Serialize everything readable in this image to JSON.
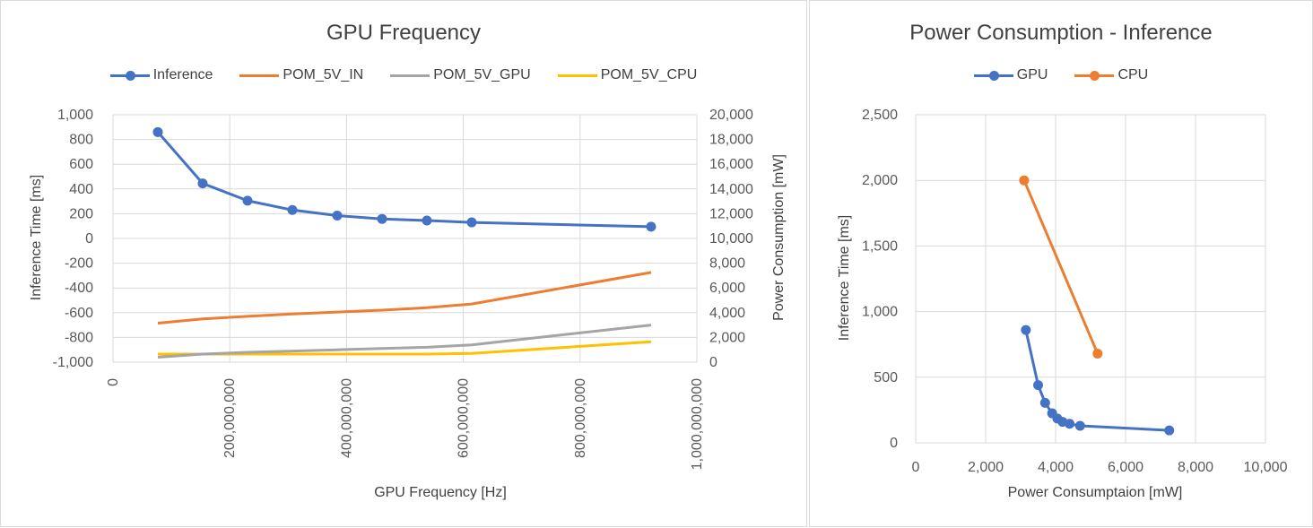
{
  "chart_data": [
    {
      "type": "line",
      "title": "GPU Frequency",
      "xlabel": "GPU Frequency [Hz]",
      "ylabel": "Inference Time [ms]",
      "y2label": "Power Consumption [mW]",
      "xlim": [
        0,
        1000000000
      ],
      "xticks": [
        0,
        200000000,
        400000000,
        600000000,
        800000000,
        1000000000
      ],
      "xtick_labels": [
        "0",
        "200,000,000",
        "400,000,000",
        "600,000,000",
        "800,000,000",
        "1,000,000,000"
      ],
      "ylim": [
        -1000,
        1000
      ],
      "yticks": [
        -1000,
        -800,
        -600,
        -400,
        -200,
        0,
        200,
        400,
        600,
        800,
        1000
      ],
      "ytick_labels": [
        "-1,000",
        "-800",
        "-600",
        "-400",
        "-200",
        "0",
        "200",
        "400",
        "600",
        "800",
        "1,000"
      ],
      "y2lim": [
        0,
        20000
      ],
      "y2ticks": [
        0,
        2000,
        4000,
        6000,
        8000,
        10000,
        12000,
        14000,
        16000,
        18000,
        20000
      ],
      "y2tick_labels": [
        "0",
        "2,000",
        "4,000",
        "6,000",
        "8,000",
        "10,000",
        "12,000",
        "14,000",
        "16,000",
        "18,000",
        "20,000"
      ],
      "grid": true,
      "legend_position": "top",
      "x": [
        76800000,
        153600000,
        230400000,
        307200000,
        384000000,
        460800000,
        537600000,
        614400000,
        921600000
      ],
      "series": [
        {
          "name": "Inference",
          "axis": "left",
          "color": "#4472C4",
          "markers": true,
          "values": [
            860,
            445,
            305,
            230,
            185,
            158,
            145,
            130,
            95
          ]
        },
        {
          "name": "POM_5V_IN",
          "axis": "right",
          "color": "#ED7D31",
          "markers": false,
          "values": [
            3150,
            3500,
            3700,
            3900,
            4050,
            4200,
            4400,
            4700,
            7250
          ]
        },
        {
          "name": "POM_5V_GPU",
          "axis": "right",
          "color": "#A5A5A5",
          "markers": false,
          "values": [
            400,
            650,
            800,
            900,
            1000,
            1100,
            1200,
            1400,
            3000
          ]
        },
        {
          "name": "POM_5V_CPU",
          "axis": "right",
          "color": "#FFC000",
          "markers": false,
          "values": [
            650,
            650,
            650,
            650,
            650,
            650,
            650,
            700,
            1650
          ]
        }
      ]
    },
    {
      "type": "scatter",
      "title": "Power Consumption - Inference",
      "xlabel": "Power Consumptaion [mW]",
      "ylabel": "Inference Time [ms]",
      "xlim": [
        0,
        10000
      ],
      "xticks": [
        0,
        2000,
        4000,
        6000,
        8000,
        10000
      ],
      "xtick_labels": [
        "0",
        "2,000",
        "4,000",
        "6,000",
        "8,000",
        "10,000"
      ],
      "ylim": [
        0,
        2500
      ],
      "yticks": [
        0,
        500,
        1000,
        1500,
        2000,
        2500
      ],
      "ytick_labels": [
        "0",
        "500",
        "1,000",
        "1,500",
        "2,000",
        "2,500"
      ],
      "grid": true,
      "legend_position": "top",
      "series": [
        {
          "name": "GPU",
          "color": "#4472C4",
          "x": [
            3150,
            3500,
            3700,
            3900,
            4050,
            4200,
            4400,
            4700,
            7250
          ],
          "y": [
            860,
            440,
            305,
            225,
            185,
            160,
            145,
            130,
            95
          ]
        },
        {
          "name": "CPU",
          "color": "#ED7D31",
          "x": [
            3100,
            5200
          ],
          "y": [
            2000,
            680
          ]
        }
      ]
    }
  ]
}
